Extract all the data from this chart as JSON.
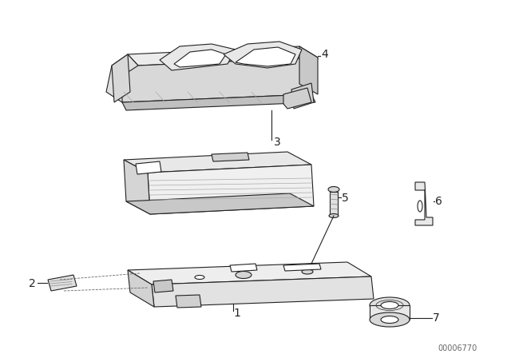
{
  "title": "",
  "background_color": "#ffffff",
  "part_numbers": [
    "1",
    "2",
    "3",
    "4",
    "5",
    "6",
    "7"
  ],
  "diagram_id": "00006770",
  "figure_size": [
    6.4,
    4.48
  ],
  "dpi": 100
}
